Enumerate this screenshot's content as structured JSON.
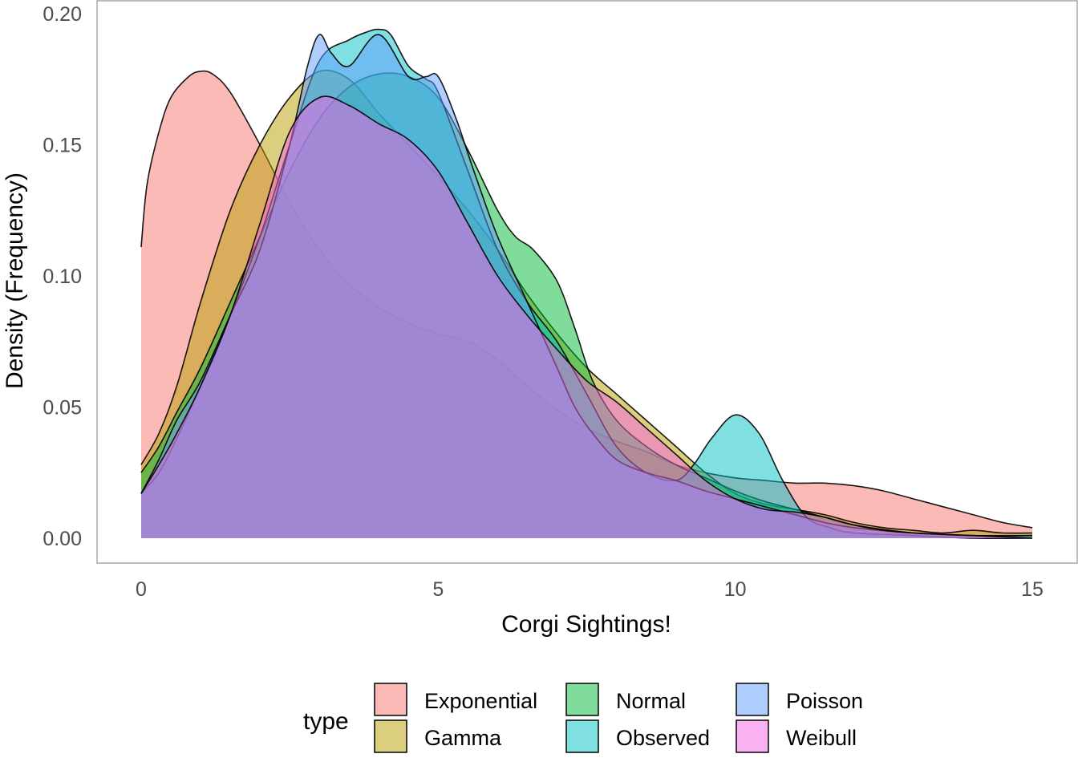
{
  "chart_data": {
    "type": "area",
    "subtype": "density",
    "xlabel": "Corgi Sightings!",
    "ylabel": "Density (Frequency)",
    "xlim": [
      0,
      15
    ],
    "ylim": [
      0,
      0.2
    ],
    "x_ticks": [
      0,
      5,
      10,
      15
    ],
    "x_tick_labels": [
      "0",
      "5",
      "10",
      "15"
    ],
    "y_ticks": [
      0,
      0.05,
      0.1,
      0.15,
      0.2
    ],
    "y_tick_labels": [
      "0.00",
      "0.05",
      "0.10",
      "0.15",
      "0.20"
    ],
    "grid": false,
    "legend": {
      "title": "type",
      "position": "bottom",
      "entries": [
        "Exponential",
        "Gamma",
        "Normal",
        "Observed",
        "Poisson",
        "Weibull"
      ]
    },
    "fill_opacity": 0.5,
    "series": [
      {
        "name": "Exponential",
        "color": "#F8766D",
        "x": [
          0,
          0.1,
          0.3,
          0.5,
          0.8,
          1.0,
          1.2,
          1.5,
          2.0,
          2.5,
          3.0,
          3.5,
          4.0,
          4.5,
          5.0,
          5.5,
          6.0,
          6.5,
          7.0,
          7.5,
          8.0,
          8.5,
          9.0,
          9.5,
          10.0,
          10.5,
          11.0,
          11.5,
          12.0,
          12.5,
          13.0,
          13.5,
          14.0,
          14.5,
          15.0
        ],
        "values": [
          0.111,
          0.135,
          0.155,
          0.168,
          0.176,
          0.178,
          0.177,
          0.17,
          0.15,
          0.128,
          0.11,
          0.097,
          0.088,
          0.082,
          0.078,
          0.075,
          0.068,
          0.058,
          0.049,
          0.042,
          0.037,
          0.033,
          0.028,
          0.025,
          0.023,
          0.022,
          0.021,
          0.021,
          0.02,
          0.018,
          0.015,
          0.012,
          0.009,
          0.006,
          0.004
        ]
      },
      {
        "name": "Gamma",
        "color": "#B79F00",
        "x": [
          0,
          0.3,
          0.6,
          1.0,
          1.5,
          2.0,
          2.5,
          3.0,
          3.5,
          4.0,
          4.5,
          5.0,
          5.5,
          6.0,
          6.5,
          7.0,
          7.5,
          8.0,
          8.5,
          9.0,
          9.5,
          10.0,
          10.5,
          11.0,
          11.5,
          12.0,
          12.5,
          13.0,
          13.5,
          14.0,
          14.5,
          15.0
        ],
        "values": [
          0.028,
          0.04,
          0.058,
          0.09,
          0.125,
          0.15,
          0.168,
          0.178,
          0.175,
          0.162,
          0.15,
          0.138,
          0.125,
          0.11,
          0.093,
          0.078,
          0.065,
          0.055,
          0.045,
          0.035,
          0.025,
          0.017,
          0.013,
          0.011,
          0.009,
          0.006,
          0.004,
          0.003,
          0.002,
          0.003,
          0.002,
          0.002
        ]
      },
      {
        "name": "Normal",
        "color": "#00BA38",
        "x": [
          0,
          0.3,
          0.6,
          1.0,
          1.5,
          2.0,
          2.5,
          3.0,
          3.5,
          4.0,
          4.5,
          5.0,
          5.5,
          6.0,
          6.3,
          6.6,
          7.0,
          7.3,
          7.6,
          8.0,
          8.5,
          9.0,
          9.5,
          10.0,
          10.5,
          11.0,
          11.5,
          12.0,
          13.0,
          14.0,
          15.0
        ],
        "values": [
          0.025,
          0.035,
          0.048,
          0.065,
          0.09,
          0.115,
          0.14,
          0.16,
          0.172,
          0.177,
          0.176,
          0.168,
          0.148,
          0.125,
          0.115,
          0.11,
          0.098,
          0.08,
          0.06,
          0.045,
          0.035,
          0.028,
          0.023,
          0.018,
          0.014,
          0.011,
          0.008,
          0.005,
          0.002,
          0.001,
          0.001
        ]
      },
      {
        "name": "Observed",
        "color": "#00BFC4",
        "x": [
          0,
          0.3,
          0.6,
          1.0,
          1.5,
          2.0,
          2.5,
          3.0,
          3.5,
          3.8,
          4.0,
          4.2,
          4.5,
          4.8,
          5.0,
          5.5,
          6.0,
          6.5,
          7.0,
          7.5,
          8.0,
          8.5,
          9.0,
          9.3,
          9.6,
          10.0,
          10.4,
          10.8,
          11.2,
          11.6,
          12.0,
          13.0,
          14.0,
          15.0
        ],
        "values": [
          0.017,
          0.025,
          0.038,
          0.058,
          0.085,
          0.115,
          0.15,
          0.182,
          0.19,
          0.193,
          0.194,
          0.192,
          0.18,
          0.175,
          0.17,
          0.14,
          0.11,
          0.09,
          0.075,
          0.055,
          0.035,
          0.025,
          0.022,
          0.028,
          0.038,
          0.047,
          0.04,
          0.022,
          0.008,
          0.004,
          0.002,
          0.001,
          0.0,
          0.0
        ]
      },
      {
        "name": "Poisson",
        "color": "#619CFF",
        "x": [
          0,
          0.3,
          0.6,
          1.0,
          1.5,
          2.0,
          2.5,
          2.8,
          3.0,
          3.2,
          3.5,
          4.0,
          4.5,
          4.8,
          5.0,
          5.3,
          5.6,
          6.0,
          6.5,
          7.0,
          7.3,
          7.6,
          8.0,
          8.5,
          9.0,
          9.5,
          10.0,
          10.5,
          11.0,
          11.5,
          12.0,
          13.0,
          14.0,
          15.0
        ],
        "values": [
          0.017,
          0.03,
          0.045,
          0.06,
          0.085,
          0.11,
          0.15,
          0.18,
          0.192,
          0.185,
          0.18,
          0.192,
          0.176,
          0.176,
          0.176,
          0.16,
          0.14,
          0.115,
          0.09,
          0.065,
          0.05,
          0.04,
          0.03,
          0.025,
          0.022,
          0.018,
          0.015,
          0.012,
          0.009,
          0.006,
          0.004,
          0.002,
          0.001,
          0.001
        ]
      },
      {
        "name": "Weibull",
        "color": "#F564E3",
        "x": [
          0,
          0.3,
          0.6,
          1.0,
          1.5,
          2.0,
          2.5,
          3.0,
          3.5,
          4.0,
          4.5,
          5.0,
          5.5,
          6.0,
          6.5,
          7.0,
          7.5,
          8.0,
          8.5,
          9.0,
          9.5,
          10.0,
          10.5,
          11.0,
          11.5,
          12.0,
          12.5,
          13.0,
          14.0,
          15.0
        ],
        "values": [
          0.017,
          0.028,
          0.04,
          0.058,
          0.085,
          0.12,
          0.155,
          0.168,
          0.165,
          0.158,
          0.152,
          0.14,
          0.12,
          0.1,
          0.085,
          0.072,
          0.06,
          0.052,
          0.042,
          0.032,
          0.022,
          0.015,
          0.011,
          0.01,
          0.008,
          0.005,
          0.003,
          0.002,
          0.001,
          0.0
        ]
      }
    ]
  }
}
